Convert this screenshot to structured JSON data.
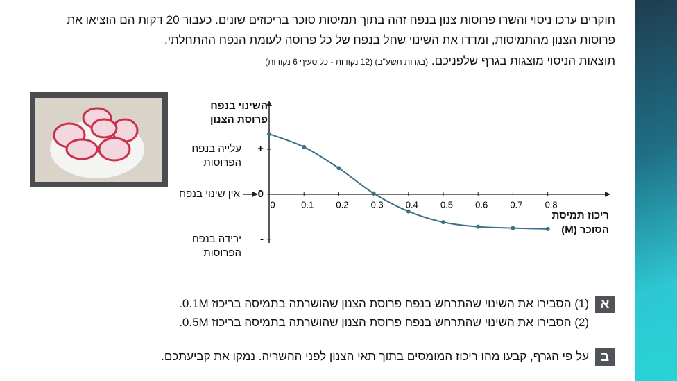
{
  "intro": {
    "lines": [
      "חוקרים ערכו ניסוי והשרו פרוסות צנון בנפח זהה בתוך תמיסות סוכר בריכוזים שונים. כעבור 20 דקות הם הוציאו את",
      "פרוסות הצנון מהתמיסות, ומדדו את השינוי שחל בנפח של כל פרוסה לעומת הנפח ההתחלתי.",
      "תוצאות הניסוי מוצגות בגרף שלפניכם."
    ],
    "source": "(בגרות תשע\"ב) (12 נקודות - כל סעיף 6 נקודות)"
  },
  "chart_data": {
    "type": "line",
    "y_title": "השינוי בנפח פרוסת הצנון",
    "x_title": "ריכוז תמיסת הסוכר (M)",
    "x": [
      0,
      0.1,
      0.2,
      0.3,
      0.4,
      0.5,
      0.6,
      0.7,
      0.8
    ],
    "values": [
      1.34,
      1.05,
      0.58,
      0.02,
      -0.38,
      -0.62,
      -0.72,
      -0.75,
      -0.77
    ],
    "color": "#3d6f86",
    "xlim": [
      0,
      0.98
    ],
    "ylim": [
      -1.08,
      2.08
    ],
    "xticks": [
      0,
      0.1,
      0.2,
      0.3,
      0.4,
      0.5,
      0.6,
      0.7,
      0.8
    ],
    "yticks": [
      {
        "value": 1,
        "label": "+"
      },
      0,
      {
        "value": -1,
        "label": "-"
      }
    ],
    "ytick_descriptions": [
      "עלייה בנפח הפרוסות",
      "אין שינוי בנפח",
      "ירידה בנפח הפרוסות"
    ]
  },
  "questions": [
    {
      "badge": "א",
      "items": [
        "(1) הסבירו את השינוי שהתרחש בנפח פרוסת הצנון שהושרתה בתמיסה בריכוז 0.1M.",
        "(2) הסבירו את השינוי שהתרחש בנפח פרוסת הצנון שהושרתה בתמיסה בריכוז 0.5M."
      ]
    },
    {
      "badge": "ב",
      "items": [
        "על פי הגרף, קבעו מהו ריכוז המומסים בתוך תאי הצנון לפני ההשריה. נמקו את קביעתכם."
      ]
    }
  ]
}
